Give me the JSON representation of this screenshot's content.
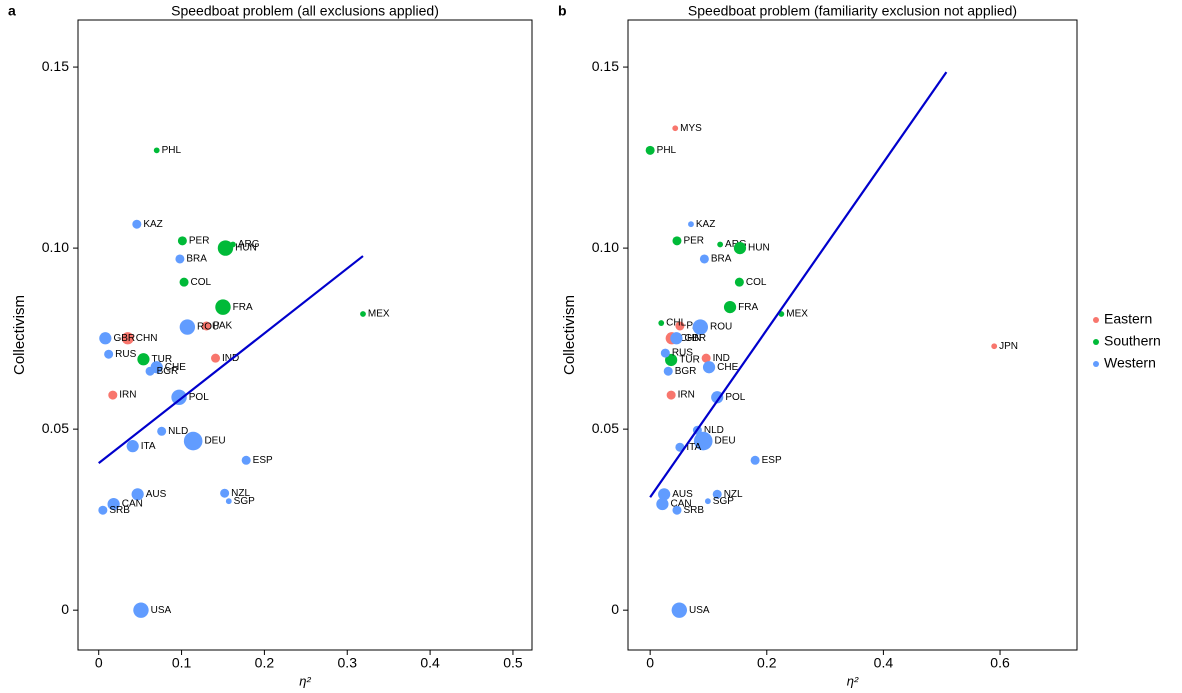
{
  "chart_data": [
    {
      "type": "scatter",
      "panel_label": "a",
      "title": "Speedboat problem (all exclusions applied)",
      "x_label": "η²",
      "y_label": "Collectivism",
      "xlim": [
        -0.025,
        0.523
      ],
      "ylim": [
        -0.011,
        0.163
      ],
      "xticks": [
        0,
        0.1,
        0.2,
        0.3,
        0.4,
        0.5
      ],
      "yticks": [
        0,
        0.05,
        {
          "value": 0.1,
          "label": "0.10"
        },
        0.15
      ],
      "series": [
        {
          "color": "#f8766d",
          "labels": [
            "CHN",
            "PAK",
            "IND",
            "IRN"
          ],
          "x": [
            0.035,
            0.13,
            0.141,
            0.017
          ],
          "values": [
            0.0751,
            0.0785,
            0.0696,
            0.0594
          ],
          "sizes": [
            3,
            2,
            2,
            2
          ]
        },
        {
          "color": "#00ba38",
          "labels": [
            "PHL",
            "PER",
            "ARG",
            "HUN",
            "COL",
            "FRA",
            "MEX",
            "TUR"
          ],
          "x": [
            0.07,
            0.101,
            0.162,
            0.153,
            0.103,
            0.15,
            0.319,
            0.054
          ],
          "values": [
            0.127,
            0.102,
            0.101,
            0.1,
            0.0906,
            0.0837,
            0.0818,
            0.0693
          ],
          "sizes": [
            1,
            2,
            1,
            4,
            2,
            4,
            1,
            3
          ]
        },
        {
          "color": "#619cff",
          "labels": [
            "KAZ",
            "BRA",
            "GBR",
            "ROU",
            "RUS",
            "CHE",
            "BGR",
            "POL",
            "NLD",
            "DEU",
            "ITA",
            "ESP",
            "AUS",
            "NZL",
            "CAN",
            "SGP",
            "SRB",
            "USA"
          ],
          "x": [
            0.046,
            0.098,
            0.008,
            0.107,
            0.012,
            0.07,
            0.062,
            0.097,
            0.076,
            0.114,
            0.041,
            0.178,
            0.047,
            0.152,
            0.018,
            0.157,
            0.005,
            0.051
          ],
          "values": [
            0.1066,
            0.097,
            0.0751,
            0.0782,
            0.0707,
            0.0671,
            0.066,
            0.0588,
            0.0494,
            0.0467,
            0.0453,
            0.0414,
            0.032,
            0.0323,
            0.0293,
            0.0301,
            0.0276,
            0.0
          ],
          "sizes": [
            2,
            2,
            3,
            4,
            2,
            3,
            2,
            4,
            2,
            5,
            3,
            2,
            3,
            2,
            3,
            1,
            2,
            4
          ]
        }
      ],
      "fit": {
        "color": "#0000cc",
        "x": [
          0,
          0.319
        ],
        "y": [
          0.0406,
          0.0978
        ]
      }
    },
    {
      "type": "scatter",
      "panel_label": "b",
      "title": "Speedboat problem (familiarity exclusion not applied)",
      "x_label": "η²",
      "y_label": "Collectivism",
      "xlim": [
        -0.038,
        0.732
      ],
      "ylim": [
        -0.011,
        0.163
      ],
      "xticks": [
        0,
        0.2,
        0.4,
        0.6
      ],
      "yticks": [
        0,
        0.05,
        {
          "value": 0.1,
          "label": "0.10"
        },
        0.15
      ],
      "legend": true,
      "series": [
        {
          "name": "Eastern",
          "color": "#f8766d",
          "labels": [
            "MYS",
            "PAK",
            "CHN",
            "IND",
            "IRN",
            "JPN"
          ],
          "x": [
            0.043,
            0.051,
            0.037,
            0.096,
            0.036,
            0.59
          ],
          "values": [
            0.1331,
            0.0785,
            0.0751,
            0.0696,
            0.0594,
            0.0729
          ],
          "sizes": [
            1,
            2,
            3,
            2,
            2,
            1
          ]
        },
        {
          "name": "Southern",
          "color": "#00ba38",
          "labels": [
            "PHL",
            "PER",
            "ARG",
            "HUN",
            "COL",
            "FRA",
            "MEX",
            "CHL",
            "TUR"
          ],
          "x": [
            0.0,
            0.046,
            0.12,
            0.154,
            0.153,
            0.137,
            0.225,
            0.019,
            0.036
          ],
          "values": [
            0.127,
            0.102,
            0.101,
            0.1,
            0.0906,
            0.0837,
            0.0818,
            0.0793,
            0.0691
          ],
          "sizes": [
            2,
            2,
            1,
            3,
            2,
            3,
            1,
            1,
            3
          ]
        },
        {
          "name": "Western",
          "color": "#619cff",
          "labels": [
            "KAZ",
            "BRA",
            "ROU",
            "GBR",
            "RUS",
            "CHE",
            "BGR",
            "POL",
            "NLD",
            "DEU",
            "ITA",
            "ESP",
            "AUS",
            "NZL",
            "CAN",
            "SGP",
            "SRB",
            "USA"
          ],
          "x": [
            0.07,
            0.093,
            0.086,
            0.045,
            0.026,
            0.101,
            0.031,
            0.115,
            0.081,
            0.091,
            0.051,
            0.18,
            0.024,
            0.115,
            0.021,
            0.099,
            0.046,
            0.05
          ],
          "values": [
            0.1066,
            0.097,
            0.0782,
            0.0751,
            0.071,
            0.0671,
            0.066,
            0.0588,
            0.0497,
            0.0467,
            0.045,
            0.0414,
            0.032,
            0.032,
            0.0293,
            0.0301,
            0.0276,
            0.0
          ],
          "sizes": [
            1,
            2,
            4,
            3,
            2,
            3,
            2,
            3,
            2,
            5,
            2,
            2,
            3,
            2,
            3,
            1,
            2,
            4
          ]
        }
      ],
      "fit": {
        "color": "#0000cc",
        "x": [
          0,
          0.508
        ],
        "y": [
          0.0312,
          0.1486
        ]
      }
    }
  ]
}
